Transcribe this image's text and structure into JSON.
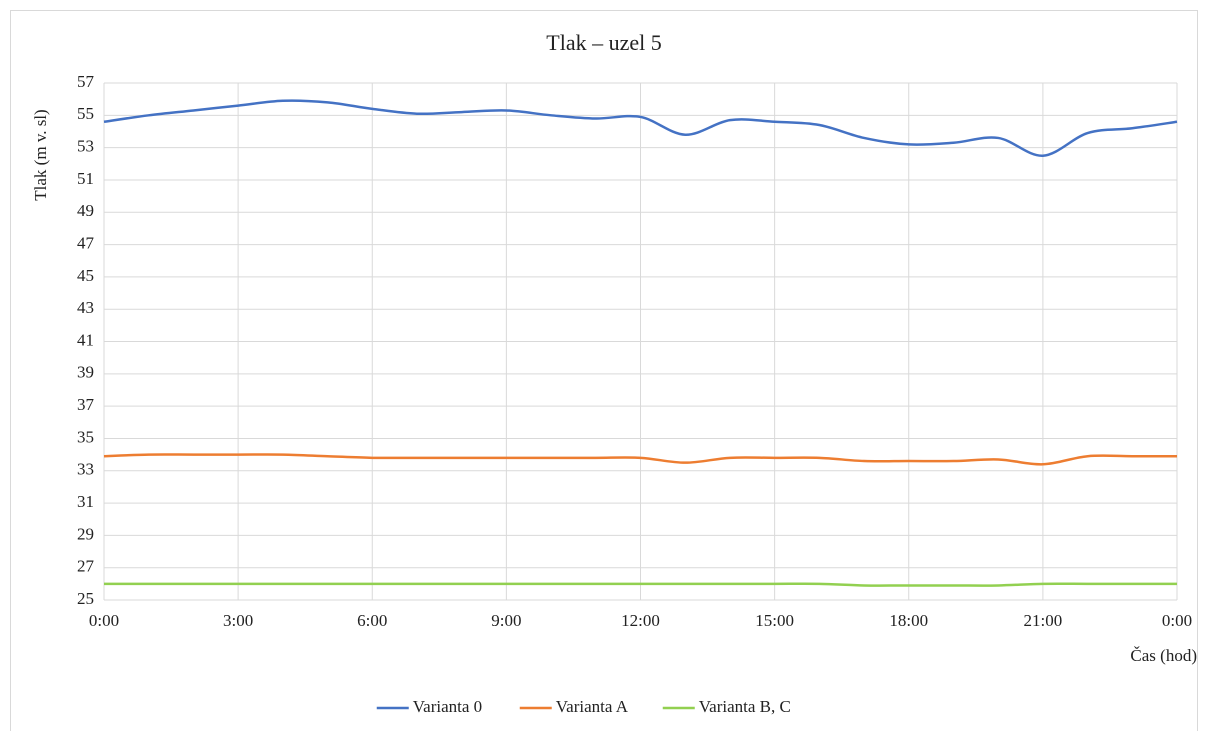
{
  "chart_data": {
    "type": "line",
    "title": "Tlak – uzel 5",
    "y_label": "Tlak (m v. sl)",
    "x_label": "Čas (hod)",
    "categories": [
      "0:00",
      null,
      null,
      "3:00",
      null,
      null,
      "6:00",
      null,
      null,
      "9:00",
      null,
      null,
      "12:00",
      null,
      null,
      "15:00",
      null,
      null,
      "18:00",
      null,
      null,
      "21:00",
      null,
      null,
      "0:00"
    ],
    "series": [
      {
        "name": "Varianta 0",
        "color": "#4472c4",
        "values": [
          54.6,
          55.0,
          55.3,
          55.6,
          55.9,
          55.8,
          55.4,
          55.1,
          55.2,
          55.3,
          55.0,
          54.8,
          54.9,
          53.8,
          54.7,
          54.6,
          54.4,
          53.6,
          53.2,
          53.3,
          53.6,
          52.5,
          53.9,
          54.2,
          54.6
        ]
      },
      {
        "name": "Varianta A",
        "color": "#ed7d31",
        "values": [
          33.9,
          34.0,
          34.0,
          34.0,
          34.0,
          33.9,
          33.8,
          33.8,
          33.8,
          33.8,
          33.8,
          33.8,
          33.8,
          33.5,
          33.8,
          33.8,
          33.8,
          33.6,
          33.6,
          33.6,
          33.7,
          33.4,
          33.9,
          33.9,
          33.9
        ]
      },
      {
        "name": "Varianta B, C",
        "color": "#92d050",
        "values": [
          26.0,
          26.0,
          26.0,
          26.0,
          26.0,
          26.0,
          26.0,
          26.0,
          26.0,
          26.0,
          26.0,
          26.0,
          26.0,
          26.0,
          26.0,
          26.0,
          26.0,
          25.9,
          25.9,
          25.9,
          25.9,
          26.0,
          26.0,
          26.0,
          26.0
        ]
      }
    ],
    "ylim": [
      25,
      57
    ],
    "yticks": [
      25,
      27,
      29,
      31,
      33,
      35,
      37,
      39,
      41,
      43,
      45,
      47,
      49,
      51,
      53,
      55,
      57
    ],
    "grid": true,
    "legend": "bottom"
  }
}
